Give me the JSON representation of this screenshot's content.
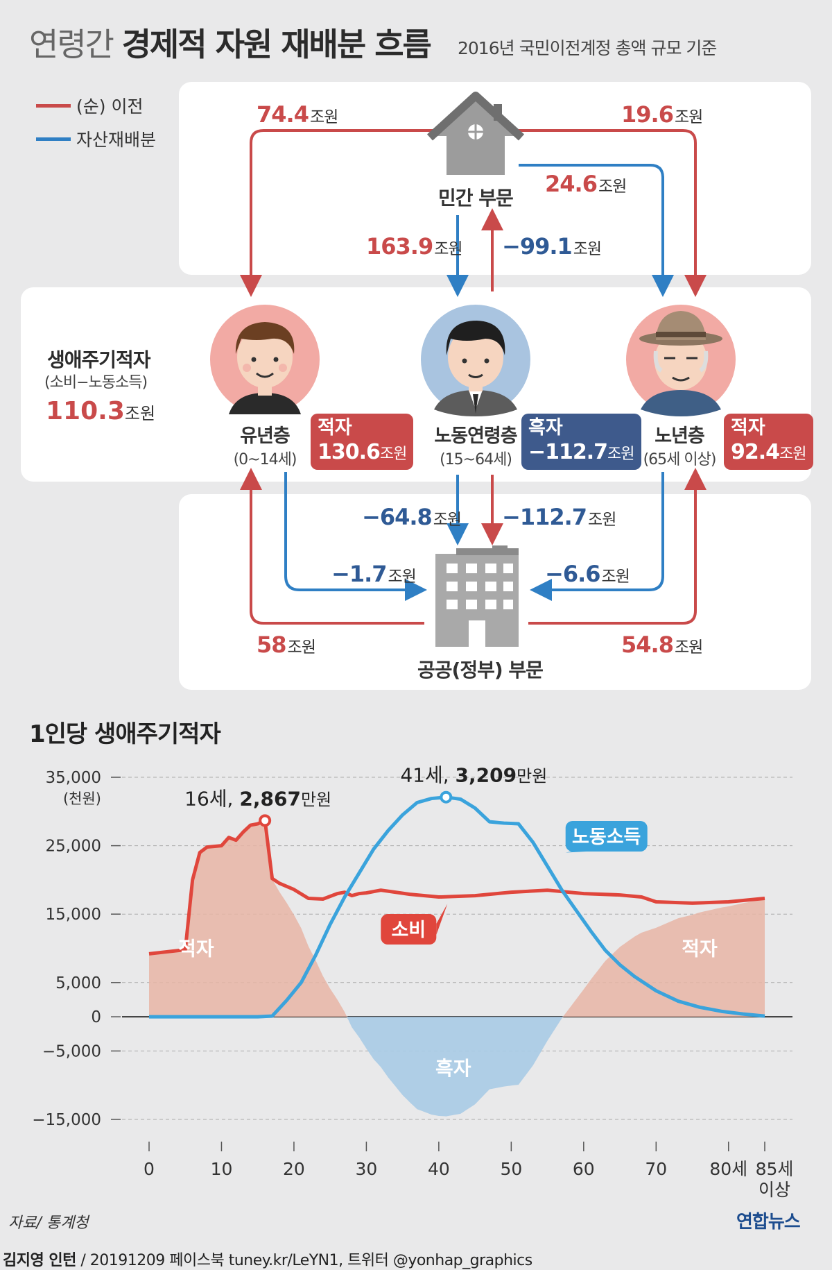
{
  "header": {
    "title_light": "연령간",
    "title_bold": "경제적 자원 재배분 흐름",
    "subtitle": "2016년 국민이전계정 총액 규모 기준"
  },
  "legend": {
    "transfer": "(순) 이전",
    "asset": "자산재배분",
    "transfer_color": "#c94a4a",
    "asset_color": "#2f7fc4"
  },
  "sectors": {
    "private": "민간 부문",
    "public": "공공(정부) 부문"
  },
  "unit": "조원",
  "flows": {
    "private_to_youth": "74.4",
    "private_to_elderly": "19.6",
    "private_asset_to_elderly": "24.6",
    "private_to_working": "163.9",
    "working_to_private": "−99.1",
    "working_asset_to_public": "−64.8",
    "working_to_public": "−112.7",
    "youth_asset_to_public": "−1.7",
    "elderly_asset_to_public": "−6.6",
    "public_to_youth": "58",
    "public_to_elderly": "54.8"
  },
  "lifecycle": {
    "label": "생애주기적자",
    "formula": "(소비−노동소득)",
    "value": "110.3"
  },
  "groups": [
    {
      "name": "유년층",
      "range": "(0~14세)",
      "status": "적자",
      "value": "130.6"
    },
    {
      "name": "노동연령층",
      "range": "(15~64세)",
      "status": "흑자",
      "value": "−112.7"
    },
    {
      "name": "노년층",
      "range": "(65세 이상)",
      "status": "적자",
      "value": "92.4"
    }
  ],
  "chart_title": "1인당 생애주기적자",
  "chart_data": {
    "type": "line",
    "y_unit_label": "(천원)",
    "ylim": [
      -15000,
      35000
    ],
    "yticks": [
      "35,000",
      "25,000",
      "15,000",
      "5,000",
      "0",
      "−5,000",
      "−15,000"
    ],
    "ytick_values": [
      35000,
      25000,
      15000,
      5000,
      0,
      -5000,
      -15000
    ],
    "xticks": [
      "0",
      "10",
      "20",
      "30",
      "40",
      "50",
      "60",
      "70",
      "80세",
      "85세 이상"
    ],
    "xtick_values": [
      0,
      10,
      20,
      30,
      40,
      50,
      60,
      70,
      80,
      85
    ],
    "x_last_label_line1": "85세",
    "x_last_label_line2": "이상",
    "xlim": [
      0,
      85
    ],
    "series": [
      {
        "name": "소비",
        "color": "#e0463c",
        "x": [
          0,
          5,
          6,
          7,
          8,
          10,
          11,
          12,
          13,
          14,
          15,
          16,
          17,
          18,
          20,
          22,
          24,
          26,
          27,
          28,
          29,
          30,
          32,
          34,
          36,
          40,
          45,
          50,
          55,
          60,
          65,
          68,
          70,
          75,
          80,
          85
        ],
        "y": [
          9200,
          9800,
          20000,
          24000,
          24800,
          25000,
          26200,
          25800,
          27000,
          28000,
          28200,
          28670,
          20200,
          19500,
          18600,
          17300,
          17200,
          18000,
          18200,
          17700,
          18000,
          18100,
          18500,
          18200,
          17900,
          17500,
          17700,
          18200,
          18500,
          18000,
          17800,
          17500,
          16800,
          16600,
          16800,
          17300
        ]
      },
      {
        "name": "노동소득",
        "color": "#3aa3dc",
        "x": [
          0,
          5,
          10,
          15,
          17,
          19,
          21,
          23,
          25,
          27,
          29,
          31,
          33,
          35,
          37,
          39,
          41,
          43,
          45,
          47,
          49,
          51,
          53,
          55,
          57,
          59,
          61,
          63,
          65,
          67,
          70,
          73,
          76,
          79,
          82,
          85
        ],
        "y": [
          0,
          0,
          0,
          0,
          100,
          2400,
          5000,
          9000,
          13500,
          17500,
          21000,
          24500,
          27200,
          29500,
          31300,
          31900,
          32090,
          31800,
          30500,
          28500,
          28300,
          28200,
          25500,
          22000,
          18500,
          15500,
          12500,
          9700,
          7600,
          5900,
          3800,
          2300,
          1400,
          800,
          400,
          100
        ]
      }
    ],
    "annotations": [
      {
        "x": 16,
        "y": 28670,
        "text_age": "16세,",
        "text_value": "2,867",
        "text_unit": "만원"
      },
      {
        "x": 41,
        "y": 32090,
        "text_age": "41세,",
        "text_value": "3,209",
        "text_unit": "만원"
      }
    ],
    "area_labels": {
      "deficit": "적자",
      "surplus": "흑자"
    },
    "series_labels": {
      "consumption": "소비",
      "labor_income": "노동소득"
    },
    "grid": true
  },
  "footer": {
    "source": "자료/ 통계청",
    "logo": "연합뉴스",
    "author": "김지영 인턴",
    "credit": "/ 20191209 페이스북 tuney.kr/LeYN1, 트위터 @yonhap_graphics"
  }
}
